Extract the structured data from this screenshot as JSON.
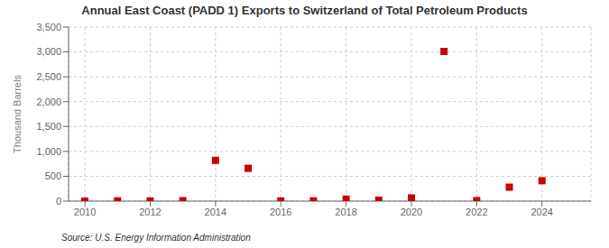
{
  "chart_data": {
    "type": "scatter",
    "title": "Annual East Coast (PADD 1) Exports to Switzerland of Total Petroleum Products",
    "y_label": "Thousand Barrels",
    "source": "Source: U.S. Energy Information Administration",
    "x": [
      2010,
      2011,
      2012,
      2013,
      2014,
      2015,
      2016,
      2017,
      2018,
      2019,
      2020,
      2021,
      2022,
      2023,
      2024
    ],
    "values": [
      0,
      5,
      3,
      8,
      820,
      660,
      3,
      5,
      40,
      20,
      65,
      3010,
      10,
      280,
      410
    ],
    "color": "#cc0000",
    "marker": "square",
    "xlim": [
      2009.5,
      2025.5
    ],
    "xticks": [
      2010,
      2012,
      2014,
      2016,
      2018,
      2020,
      2022,
      2024
    ],
    "ylim": [
      0,
      3500
    ],
    "yticks": [
      0,
      500,
      {
        "value": 1000,
        "label": "1,000"
      },
      {
        "value": 1500,
        "label": "1,500"
      },
      {
        "value": 2000,
        "label": "2,000"
      },
      {
        "value": 2500,
        "label": "2,500"
      },
      {
        "value": 3000,
        "label": "3,000"
      },
      {
        "value": 3500,
        "label": "3,500"
      }
    ],
    "grid": true
  }
}
